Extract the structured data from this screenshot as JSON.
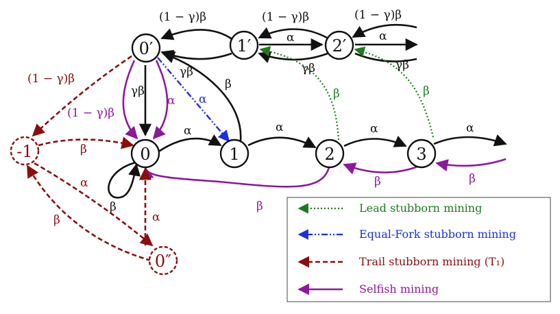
{
  "colors": {
    "black": "#111111",
    "purple": "#8b1a9b",
    "darkred": "#8b0d0d",
    "green": "#1f7a1f",
    "blue": "#1a2ee6"
  },
  "states": {
    "s0": "0",
    "s1": "1",
    "s2": "2",
    "s3": "3",
    "s0p": "0′",
    "s1p": "1′",
    "s2p": "2′",
    "sm1": "-1",
    "s0pp": "0″"
  },
  "edge_labels": {
    "one_minus_gamma_beta": "(1 − γ)β",
    "gamma_beta": "γβ",
    "alpha": "α",
    "beta": "β"
  },
  "legend": {
    "lead": "Lead stubborn mining",
    "equal_fork": "Equal-Fork stubborn mining",
    "trail": "Trail stubborn mining (T₁)",
    "selfish": "Selfish mining"
  }
}
